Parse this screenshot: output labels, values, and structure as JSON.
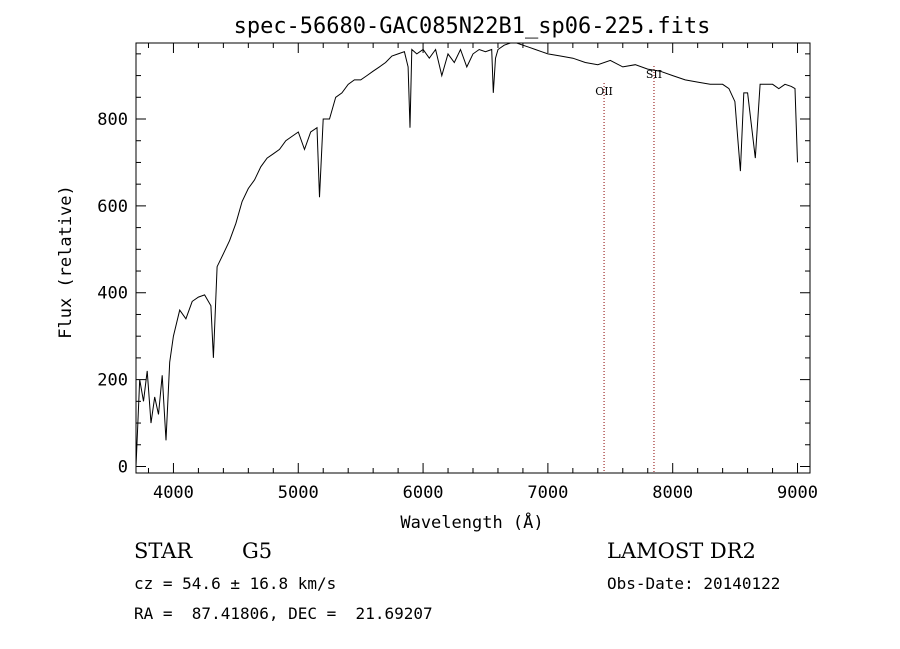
{
  "chart_data": {
    "type": "line",
    "title": "spec-56680-GAC085N22B1_sp06-225.fits",
    "xlabel": "Wavelength (Å)",
    "ylabel": "Flux (relative)",
    "xlim": [
      3700,
      9100
    ],
    "ylim": [
      -15,
      975
    ],
    "x_ticks": [
      4000,
      5000,
      6000,
      7000,
      8000,
      9000
    ],
    "x_tick_labels": [
      "4000",
      "5000",
      "6000",
      "7000",
      "8000",
      "9000"
    ],
    "y_ticks": [
      0,
      200,
      400,
      600,
      800
    ],
    "y_tick_labels": [
      "0",
      "200",
      "400",
      "600",
      "800"
    ],
    "grid": false,
    "series": [
      {
        "x": [
          3700,
          3730,
          3760,
          3790,
          3820,
          3850,
          3880,
          3910,
          3940,
          3970,
          4000,
          4050,
          4100,
          4150,
          4200,
          4250,
          4300,
          4320,
          4350,
          4400,
          4450,
          4500,
          4550,
          4600,
          4650,
          4700,
          4750,
          4800,
          4850,
          4900,
          4950,
          5000,
          5050,
          5100,
          5150,
          5170,
          5200,
          5250,
          5300,
          5350,
          5400,
          5450,
          5500,
          5550,
          5600,
          5650,
          5700,
          5750,
          5800,
          5850,
          5880,
          5895,
          5910,
          5950,
          6000,
          6050,
          6100,
          6150,
          6200,
          6250,
          6300,
          6350,
          6400,
          6450,
          6500,
          6550,
          6563,
          6580,
          6600,
          6650,
          6700,
          6750,
          6800,
          6850,
          6900,
          6950,
          7000,
          7100,
          7200,
          7300,
          7400,
          7500,
          7600,
          7700,
          7800,
          7900,
          8000,
          8100,
          8200,
          8300,
          8400,
          8450,
          8498,
          8520,
          8542,
          8570,
          8600,
          8662,
          8700,
          8750,
          8800,
          8850,
          8900,
          8950,
          8980,
          9000
        ],
        "y": [
          0,
          200,
          150,
          220,
          100,
          160,
          120,
          210,
          60,
          240,
          300,
          360,
          340,
          380,
          390,
          395,
          370,
          250,
          460,
          490,
          520,
          560,
          610,
          640,
          660,
          690,
          710,
          720,
          730,
          750,
          760,
          770,
          730,
          770,
          780,
          620,
          800,
          800,
          850,
          860,
          880,
          890,
          890,
          900,
          910,
          920,
          930,
          945,
          950,
          955,
          920,
          780,
          960,
          950,
          960,
          940,
          960,
          900,
          950,
          930,
          960,
          920,
          950,
          960,
          955,
          960,
          860,
          940,
          960,
          970,
          975,
          975,
          970,
          965,
          960,
          955,
          950,
          945,
          940,
          930,
          925,
          935,
          920,
          925,
          915,
          910,
          900,
          890,
          885,
          880,
          880,
          870,
          840,
          760,
          680,
          860,
          860,
          710,
          880,
          880,
          880,
          870,
          880,
          875,
          870,
          700
        ]
      }
    ],
    "annotations": [
      {
        "label": "OII",
        "x": 7450
      },
      {
        "label": "SII",
        "x": 7850
      }
    ]
  },
  "info": {
    "object_class": "STAR",
    "subclass": "G5",
    "redshift_text": "cz = 54.6 ± 16.8 km/s",
    "coords_text": "RA =  87.41806, DEC =  21.69207",
    "survey": "LAMOST DR2",
    "obs_date": "Obs-Date: 20140122"
  }
}
